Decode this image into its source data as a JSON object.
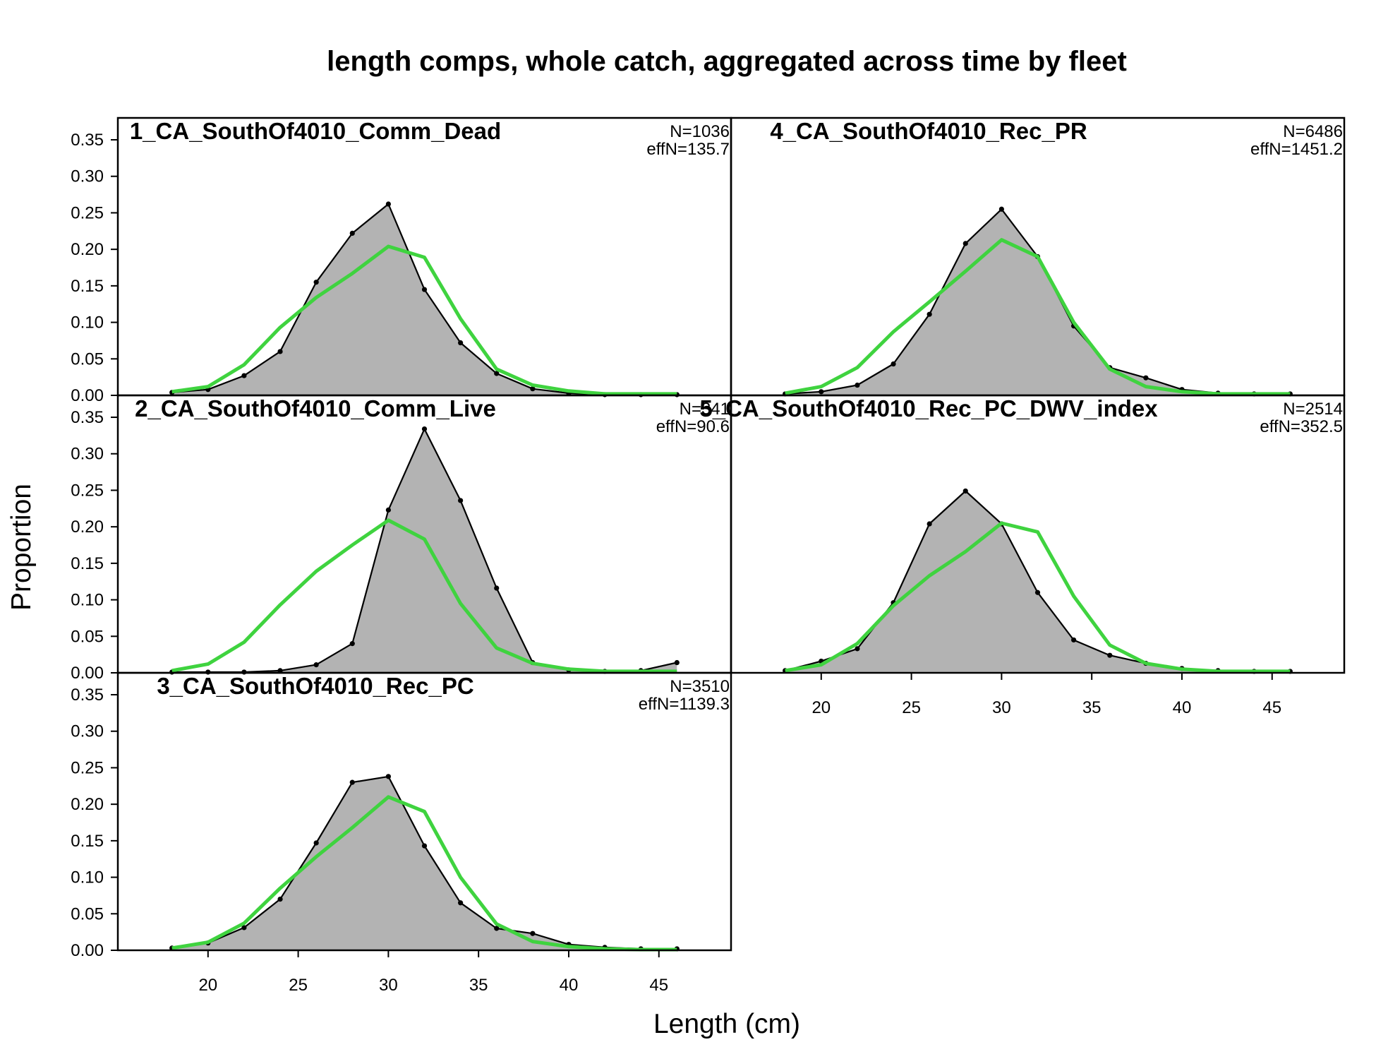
{
  "chart_data": {
    "type": "area",
    "title": "length comps, whole catch, aggregated across time by fleet",
    "xlabel": "Length (cm)",
    "ylabel": "Proportion",
    "xlim": [
      15,
      49
    ],
    "ylim": [
      0,
      0.38
    ],
    "x_ticks": [
      20,
      25,
      30,
      35,
      40,
      45
    ],
    "x_tick_labels": [
      "20",
      "25",
      "30",
      "35",
      "40",
      "45"
    ],
    "y_ticks": [
      0,
      0.05,
      0.1,
      0.15,
      0.2,
      0.25,
      0.3,
      0.35
    ],
    "y_tick_labels": [
      "0.00",
      "0.05",
      "0.10",
      "0.15",
      "0.20",
      "0.25",
      "0.30",
      "0.35"
    ],
    "x": [
      18,
      20,
      22,
      24,
      26,
      28,
      30,
      32,
      34,
      36,
      38,
      40,
      42,
      44,
      46
    ],
    "colors": {
      "observed_fill": "#b3b3b3",
      "observed_line": "#000000",
      "expected_line": "#3fd33f",
      "zero_line": "#bebebe"
    },
    "grid": false,
    "panels": [
      {
        "name": "1_CA_SouthOf4010_Comm_Dead",
        "n_label": "N=1036",
        "effn_label": "effN=135.7",
        "observed": [
          0.004,
          0.008,
          0.027,
          0.06,
          0.155,
          0.222,
          0.262,
          0.145,
          0.072,
          0.03,
          0.009,
          0.003,
          0.001,
          0.001,
          0.001
        ],
        "expected": [
          0.005,
          0.012,
          0.042,
          0.093,
          0.134,
          0.167,
          0.204,
          0.189,
          0.105,
          0.036,
          0.014,
          0.006,
          0.002,
          0.002,
          0.002
        ]
      },
      {
        "name": "2_CA_SouthOf4010_Comm_Live",
        "n_label": "N=341",
        "effn_label": "effN=90.6",
        "observed": [
          0.001,
          0.001,
          0.001,
          0.003,
          0.011,
          0.04,
          0.223,
          0.334,
          0.236,
          0.116,
          0.014,
          0.004,
          0.002,
          0.003,
          0.014
        ],
        "expected": [
          0.003,
          0.012,
          0.042,
          0.093,
          0.139,
          0.175,
          0.209,
          0.183,
          0.095,
          0.034,
          0.013,
          0.005,
          0.002,
          0.002,
          0.002
        ]
      },
      {
        "name": "3_CA_SouthOf4010_Rec_PC",
        "n_label": "N=3510",
        "effn_label": "effN=1139.3",
        "observed": [
          0.003,
          0.01,
          0.031,
          0.07,
          0.147,
          0.23,
          0.238,
          0.143,
          0.065,
          0.03,
          0.023,
          0.008,
          0.004,
          0.002,
          0.002
        ],
        "expected": [
          0.003,
          0.011,
          0.037,
          0.085,
          0.128,
          0.168,
          0.21,
          0.19,
          0.1,
          0.036,
          0.012,
          0.005,
          0.002,
          0.001,
          0.001
        ]
      },
      {
        "name": "4_CA_SouthOf4010_Rec_PR",
        "n_label": "N=6486",
        "effn_label": "effN=1451.2",
        "observed": [
          0.002,
          0.005,
          0.014,
          0.043,
          0.111,
          0.208,
          0.255,
          0.19,
          0.095,
          0.038,
          0.024,
          0.008,
          0.003,
          0.002,
          0.002
        ],
        "expected": [
          0.003,
          0.012,
          0.038,
          0.087,
          0.128,
          0.17,
          0.213,
          0.19,
          0.1,
          0.036,
          0.012,
          0.005,
          0.002,
          0.002,
          0.002
        ]
      },
      {
        "name": "5_CA_SouthOf4010_Rec_PC_DWV_index",
        "n_label": "N=2514",
        "effn_label": "effN=352.5",
        "observed": [
          0.003,
          0.016,
          0.033,
          0.096,
          0.204,
          0.249,
          0.204,
          0.11,
          0.045,
          0.024,
          0.013,
          0.006,
          0.003,
          0.002,
          0.002
        ],
        "expected": [
          0.003,
          0.011,
          0.04,
          0.092,
          0.133,
          0.166,
          0.205,
          0.193,
          0.105,
          0.038,
          0.013,
          0.005,
          0.002,
          0.002,
          0.002
        ]
      }
    ]
  }
}
